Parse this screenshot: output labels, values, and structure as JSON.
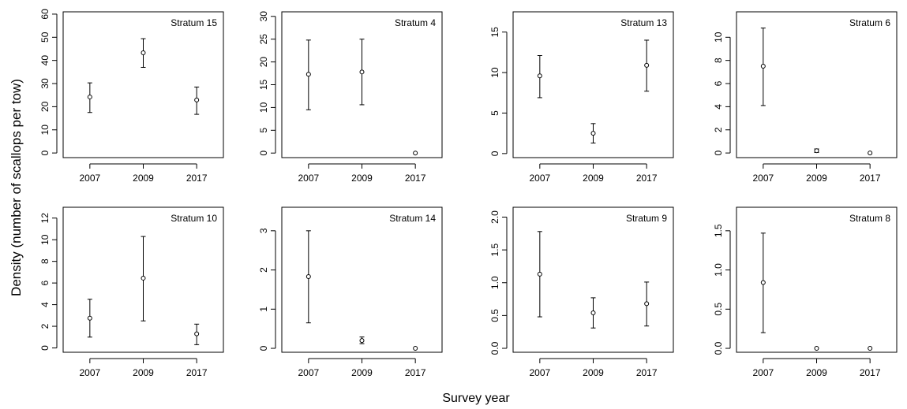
{
  "figure": {
    "ylabel": "Density (number of scallops per tow)",
    "xlabel": "Survey year"
  },
  "chart_data": [
    {
      "type": "scatter",
      "title": "Stratum 15",
      "categories": [
        "2007",
        "2009",
        "2017"
      ],
      "values": [
        24.2,
        43.3,
        22.9
      ],
      "lower": [
        17.5,
        37,
        16.7
      ],
      "upper": [
        30.3,
        49.4,
        28.5
      ],
      "ylim": [
        -2,
        61
      ],
      "yticks": [
        0,
        10,
        20,
        30,
        40,
        50,
        60
      ]
    },
    {
      "type": "scatter",
      "title": "Stratum 4",
      "categories": [
        "2007",
        "2009",
        "2017"
      ],
      "values": [
        17.3,
        17.8,
        0
      ],
      "lower": [
        9.5,
        10.6,
        0
      ],
      "upper": [
        24.8,
        25,
        0
      ],
      "ylim": [
        -1,
        31
      ],
      "yticks": [
        0,
        5,
        10,
        15,
        20,
        25,
        30
      ]
    },
    {
      "type": "scatter",
      "title": "Stratum 13",
      "categories": [
        "2007",
        "2009",
        "2017"
      ],
      "values": [
        9.6,
        2.5,
        10.9
      ],
      "lower": [
        6.9,
        1.3,
        7.7
      ],
      "upper": [
        12.1,
        3.7,
        14
      ],
      "ylim": [
        -0.5,
        17.5
      ],
      "yticks": [
        0,
        5,
        10,
        15
      ]
    },
    {
      "type": "scatter",
      "title": "Stratum 6",
      "categories": [
        "2007",
        "2009",
        "2017"
      ],
      "values": [
        7.5,
        0.2,
        0
      ],
      "lower": [
        4.1,
        0.05,
        0
      ],
      "upper": [
        10.8,
        0.35,
        0
      ],
      "ylim": [
        -0.4,
        12.2
      ],
      "yticks": [
        0,
        2,
        4,
        6,
        8,
        10
      ]
    },
    {
      "type": "scatter",
      "title": "Stratum 10",
      "categories": [
        "2007",
        "2009",
        "2017"
      ],
      "values": [
        2.75,
        6.45,
        1.3
      ],
      "lower": [
        1.0,
        2.5,
        0.3
      ],
      "upper": [
        4.5,
        10.3,
        2.2
      ],
      "ylim": [
        -0.4,
        13
      ],
      "yticks": [
        0,
        2,
        4,
        6,
        8,
        10,
        12
      ]
    },
    {
      "type": "scatter",
      "title": "Stratum 14",
      "categories": [
        "2007",
        "2009",
        "2017"
      ],
      "values": [
        1.83,
        0.2,
        0
      ],
      "lower": [
        0.65,
        0.12,
        0
      ],
      "upper": [
        3.0,
        0.29,
        0
      ],
      "ylim": [
        -0.1,
        3.6
      ],
      "yticks": [
        0,
        1,
        2,
        3
      ]
    },
    {
      "type": "scatter",
      "title": "Stratum 9",
      "categories": [
        "2007",
        "2009",
        "2017"
      ],
      "values": [
        1.13,
        0.54,
        0.68
      ],
      "lower": [
        0.48,
        0.31,
        0.34
      ],
      "upper": [
        1.78,
        0.77,
        1.01
      ],
      "ylim": [
        -0.06,
        2.15
      ],
      "yticks": [
        0.0,
        0.5,
        1.0,
        1.5,
        2.0
      ]
    },
    {
      "type": "scatter",
      "title": "Stratum 8",
      "categories": [
        "2007",
        "2009",
        "2017"
      ],
      "values": [
        0.84,
        0,
        0
      ],
      "lower": [
        0.2,
        0,
        0
      ],
      "upper": [
        1.47,
        0,
        0
      ],
      "ylim": [
        -0.05,
        1.8
      ],
      "yticks": [
        0.0,
        0.5,
        1.0,
        1.5
      ]
    }
  ]
}
